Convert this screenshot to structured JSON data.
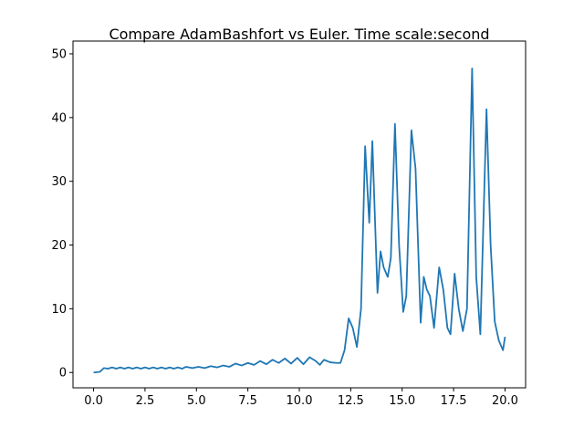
{
  "chart_data": {
    "type": "line",
    "title": "Compare AdamBashfort vs Euler. Time scale:second",
    "x": [
      0,
      0.3,
      0.5,
      0.7,
      0.9,
      1.1,
      1.3,
      1.5,
      1.7,
      1.9,
      2.1,
      2.3,
      2.5,
      2.7,
      2.9,
      3.1,
      3.3,
      3.5,
      3.7,
      3.9,
      4.1,
      4.3,
      4.5,
      4.8,
      5.1,
      5.4,
      5.7,
      6.0,
      6.3,
      6.6,
      6.9,
      7.2,
      7.5,
      7.8,
      8.1,
      8.4,
      8.7,
      9.0,
      9.3,
      9.6,
      9.9,
      10.2,
      10.5,
      10.8,
      11.0,
      11.2,
      11.5,
      11.8,
      12.0,
      12.2,
      12.4,
      12.6,
      12.8,
      13.0,
      13.2,
      13.4,
      13.55,
      13.8,
      13.95,
      14.1,
      14.3,
      14.45,
      14.65,
      14.85,
      15.05,
      15.2,
      15.45,
      15.65,
      15.9,
      16.05,
      16.2,
      16.35,
      16.55,
      16.8,
      17.0,
      17.2,
      17.35,
      17.55,
      17.75,
      17.95,
      18.15,
      18.4,
      18.6,
      18.8,
      19.1,
      19.3,
      19.5,
      19.7,
      19.9,
      20.0
    ],
    "series": [
      {
        "color": "#1f77b4",
        "values": [
          0,
          0.1,
          0.7,
          0.6,
          0.8,
          0.6,
          0.8,
          0.6,
          0.8,
          0.6,
          0.8,
          0.6,
          0.8,
          0.6,
          0.8,
          0.6,
          0.8,
          0.6,
          0.8,
          0.6,
          0.8,
          0.6,
          0.9,
          0.7,
          0.9,
          0.7,
          1.0,
          0.8,
          1.1,
          0.9,
          1.4,
          1.1,
          1.5,
          1.2,
          1.8,
          1.3,
          2.0,
          1.5,
          2.2,
          1.4,
          2.3,
          1.3,
          2.4,
          1.8,
          1.2,
          2.0,
          1.6,
          1.5,
          1.5,
          3.5,
          8.5,
          7,
          4,
          10,
          35.5,
          23.5,
          36.3,
          12.5,
          19,
          16.5,
          15,
          18,
          39,
          20,
          9.5,
          12,
          38,
          32,
          7.8,
          15,
          13,
          12,
          7,
          16.5,
          13,
          7,
          6,
          15.5,
          10,
          6.5,
          10,
          47.7,
          15,
          6,
          41.3,
          20,
          8,
          5,
          3.5,
          5.6
        ]
      }
    ],
    "xlim": [
      -1,
      21
    ],
    "ylim": [
      -2.4,
      52
    ],
    "xticks": [
      {
        "value": 0,
        "label": "0.0"
      },
      2.5,
      {
        "value": 5,
        "label": "5.0"
      },
      7.5,
      {
        "value": 10,
        "label": "10.0"
      },
      12.5,
      {
        "value": 15,
        "label": "15.0"
      },
      17.5,
      {
        "value": 20,
        "label": "20.0"
      }
    ],
    "yticks": [
      0,
      10,
      20,
      30,
      40,
      50
    ]
  }
}
